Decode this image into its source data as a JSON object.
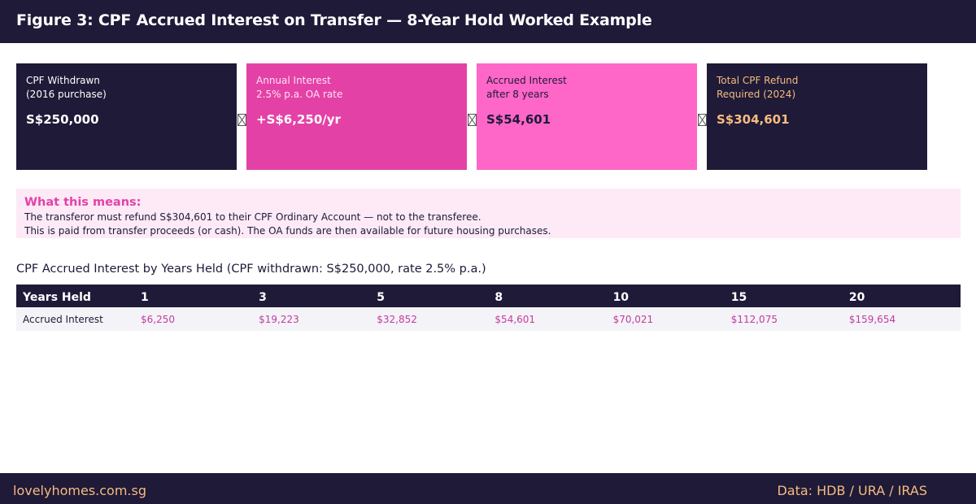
{
  "header": {
    "title": "Figure 3: CPF Accrued Interest on Transfer — 8-Year Hold Worked Example"
  },
  "cards": [
    {
      "label": "CPF Withdrawn\n(2016 purchase)",
      "value": "S$250,000"
    },
    {
      "label": "Annual Interest\n2.5% p.a. OA rate",
      "value": "+S$6,250/yr"
    },
    {
      "label": "Accrued Interest\nafter 8 years",
      "value": "S$54,601"
    },
    {
      "label": "Total CPF Refund\nRequired (2024)",
      "value": "S$304,601"
    }
  ],
  "note": {
    "title": "What this means:",
    "line1": "The transferor must refund S$304,601 to their CPF Ordinary Account — not to the transferee.",
    "line2": "This is paid from transfer proceeds (or cash). The OA funds are then available for future housing purchases."
  },
  "table": {
    "title": "CPF Accrued Interest by Years Held (CPF withdrawn: S$250,000, rate 2.5% p.a.)",
    "header_label": "Years Held",
    "years": [
      "1",
      "3",
      "5",
      "8",
      "10",
      "15",
      "20"
    ],
    "row_label": "Accrued Interest",
    "values": [
      "$6,250",
      "$19,223",
      "$32,852",
      "$54,601",
      "$70,021",
      "$112,075",
      "$159,654"
    ]
  },
  "footer": {
    "site": "lovelyhomes.com.sg",
    "source": "Data: HDB / URA / IRAS"
  },
  "colors": {
    "navy": "#1e1a38",
    "magenta": "#e441a7",
    "pink": "#fe66c8",
    "gold": "#f7bb7f",
    "note_bg": "#fdeaf6"
  }
}
